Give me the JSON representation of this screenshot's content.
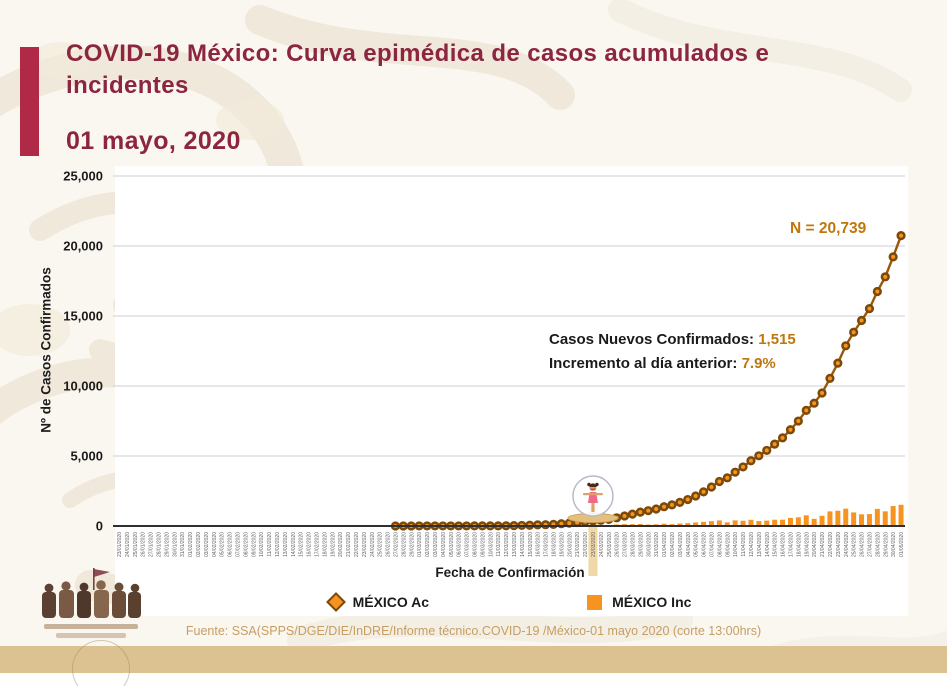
{
  "header": {
    "title": "COVID-19 México: Curva epimédica de casos acumulados e incidentes",
    "date": "01 mayo, 2020"
  },
  "annotations": {
    "n_label": "N = 20,739",
    "new_cases_label": "Casos Nuevos Confirmados:",
    "new_cases_value": "1,515",
    "increment_label": "Incremento al día anterior:",
    "increment_value": "7.9%"
  },
  "footer": {
    "source": "Fuente: SSA(SPPS/DGE/DIE/InDRE/Informe técnico.COVID-19 /México-01 mayo 2020 (corte 13:00hrs)"
  },
  "icons": {
    "ac_marker": "diamond-icon",
    "inc_marker": "square-icon",
    "mascot": "susana-distancia-globe-icon",
    "logo": "gobierno-de-mexico-heroes-logo"
  },
  "colors": {
    "maroon": "#8c2540",
    "crimson": "#b02a48",
    "orange": "#f79420",
    "line_brown": "#9b560b",
    "marker_ring": "#7c4a08",
    "brownorange": "#bf760d",
    "gold_band": "#dcc291",
    "tan_text": "#c79d62",
    "highlight_band": "#f0d49e",
    "gridline": "#cfcfcf",
    "axis": "#2f2f2f"
  },
  "chart_data": {
    "type": "combo",
    "title": "",
    "xlabel": "Fecha de Confirmación",
    "ylabel": "Nº de Casos Confirmados",
    "ylim": [
      0,
      25000
    ],
    "yticks": [
      0,
      5000,
      10000,
      15000,
      20000,
      25000
    ],
    "ytick_labels": [
      "0",
      "5,000",
      "10,000",
      "15,000",
      "20,000",
      "25,000"
    ],
    "grid": "horizontal",
    "legend_position": "bottom",
    "highlight_category": "23/03/2020",
    "categories": [
      "23/01/2020",
      "24/01/2020",
      "25/01/2020",
      "26/01/2020",
      "27/01/2020",
      "28/01/2020",
      "29/01/2020",
      "30/01/2020",
      "31/01/2020",
      "01/02/2020",
      "02/02/2020",
      "03/02/2020",
      "04/02/2020",
      "05/02/2020",
      "06/02/2020",
      "07/02/2020",
      "08/02/2020",
      "09/02/2020",
      "10/02/2020",
      "11/02/2020",
      "12/02/2020",
      "13/02/2020",
      "14/02/2020",
      "15/02/2020",
      "16/02/2020",
      "17/02/2020",
      "18/02/2020",
      "19/02/2020",
      "20/02/2020",
      "21/02/2020",
      "22/02/2020",
      "23/02/2020",
      "24/02/2020",
      "25/02/2020",
      "26/02/2020",
      "27/02/2020",
      "28/02/2020",
      "29/02/2020",
      "01/03/2020",
      "02/03/2020",
      "03/03/2020",
      "04/03/2020",
      "05/03/2020",
      "06/03/2020",
      "07/03/2020",
      "08/03/2020",
      "09/03/2020",
      "10/03/2020",
      "11/03/2020",
      "12/03/2020",
      "13/03/2020",
      "14/03/2020",
      "15/03/2020",
      "16/03/2020",
      "17/03/2020",
      "18/03/2020",
      "19/03/2020",
      "20/03/2020",
      "21/03/2020",
      "22/03/2020",
      "23/03/2020",
      "24/03/2020",
      "25/03/2020",
      "26/03/2020",
      "27/03/2020",
      "28/03/2020",
      "29/03/2020",
      "30/03/2020",
      "31/03/2020",
      "01/04/2020",
      "02/04/2020",
      "03/04/2020",
      "04/04/2020",
      "05/04/2020",
      "06/04/2020",
      "07/04/2020",
      "08/04/2020",
      "09/04/2020",
      "10/04/2020",
      "11/04/2020",
      "12/04/2020",
      "13/04/2020",
      "14/04/2020",
      "15/04/2020",
      "16/04/2020",
      "17/04/2020",
      "18/04/2020",
      "19/04/2020",
      "20/04/2020",
      "21/04/2020",
      "22/04/2020",
      "23/04/2020",
      "24/04/2020",
      "25/04/2020",
      "26/04/2020",
      "27/04/2020",
      "28/04/2020",
      "29/04/2020",
      "30/04/2020",
      "01/05/2020"
    ],
    "series": [
      {
        "name": "MÉXICO Ac",
        "kind": "line",
        "start_index": 35,
        "values": [
          1,
          2,
          4,
          5,
          5,
          5,
          5,
          5,
          6,
          6,
          7,
          7,
          7,
          11,
          15,
          26,
          41,
          53,
          82,
          93,
          118,
          164,
          203,
          251,
          316,
          367,
          405,
          475,
          585,
          717,
          848,
          993,
          1094,
          1215,
          1378,
          1510,
          1688,
          1890,
          2143,
          2439,
          2785,
          3181,
          3441,
          3844,
          4219,
          4661,
          5014,
          5399,
          5847,
          6297,
          6875,
          7497,
          8261,
          8772,
          9501,
          10544,
          11633,
          12872,
          13842,
          14677,
          15529,
          16752,
          17799,
          19224,
          20739
        ]
      },
      {
        "name": "MÉXICO Inc",
        "kind": "bar",
        "start_index": 35,
        "values": [
          1,
          1,
          2,
          1,
          0,
          0,
          0,
          0,
          1,
          0,
          1,
          0,
          0,
          4,
          4,
          11,
          15,
          12,
          29,
          11,
          25,
          46,
          39,
          48,
          65,
          51,
          38,
          70,
          110,
          132,
          131,
          145,
          101,
          121,
          163,
          132,
          178,
          202,
          253,
          296,
          346,
          396,
          260,
          403,
          375,
          442,
          353,
          385,
          448,
          450,
          578,
          622,
          764,
          511,
          729,
          1043,
          1089,
          1239,
          970,
          835,
          852,
          1223,
          1047,
          1425,
          1515
        ]
      }
    ]
  }
}
